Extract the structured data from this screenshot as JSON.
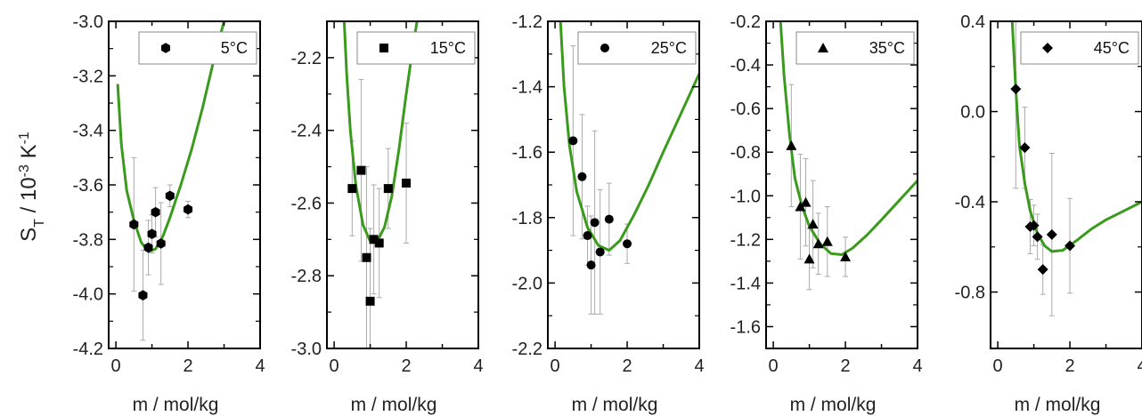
{
  "figure": {
    "ylabel_main": "S",
    "ylabel_sub": "T",
    "ylabel_rest": " / 10",
    "ylabel_exp1": "-3",
    "ylabel_unit": " K",
    "ylabel_exp2": "-1"
  },
  "colors": {
    "fit": "#3a9a1c",
    "marker": "#000000",
    "errorbar": "#aaaaaa"
  },
  "chart_data": [
    {
      "type": "scatter",
      "legend": "5°C",
      "legend_placement": "top-right",
      "marker": "hexagon",
      "xlabel": "m / mol/kg",
      "xlim": [
        -0.2,
        4
      ],
      "ylim": [
        -4.2,
        -3.0
      ],
      "xticks": [
        0,
        2,
        4
      ],
      "yticks": [
        -4.2,
        -4.0,
        -3.8,
        -3.6,
        -3.4,
        -3.2,
        -3.0
      ],
      "ytick_labels": [
        "-4.2",
        "-4.0",
        "-3.8",
        "-3.6",
        "-3.4",
        "-3.2",
        "-3.0"
      ],
      "points": [
        {
          "x": 0.5,
          "y": -3.745,
          "err": 0.245
        },
        {
          "x": 0.75,
          "y": -4.005,
          "err": 0.165
        },
        {
          "x": 0.9,
          "y": -3.83,
          "err": 0.1
        },
        {
          "x": 1.0,
          "y": -3.78,
          "err": 0.07
        },
        {
          "x": 1.1,
          "y": -3.7,
          "err": 0.09
        },
        {
          "x": 1.25,
          "y": -3.815,
          "err": 0.15
        },
        {
          "x": 1.5,
          "y": -3.64,
          "err": 0.04
        },
        {
          "x": 2.0,
          "y": -3.69,
          "err": 0.03
        }
      ],
      "fit": [
        [
          0.05,
          -3.23
        ],
        [
          0.15,
          -3.45
        ],
        [
          0.3,
          -3.62
        ],
        [
          0.5,
          -3.73
        ],
        [
          0.7,
          -3.81
        ],
        [
          0.9,
          -3.845
        ],
        [
          1.1,
          -3.835
        ],
        [
          1.3,
          -3.79
        ],
        [
          1.5,
          -3.72
        ],
        [
          1.8,
          -3.6
        ],
        [
          2.1,
          -3.47
        ],
        [
          2.4,
          -3.32
        ],
        [
          2.7,
          -3.15
        ],
        [
          3.0,
          -3.0
        ]
      ]
    },
    {
      "type": "scatter",
      "legend": "15°C",
      "legend_placement": "top-right",
      "marker": "square",
      "xlabel": "m / mol/kg",
      "xlim": [
        -0.2,
        4
      ],
      "ylim": [
        -3.0,
        -2.1
      ],
      "xticks": [
        0,
        2,
        4
      ],
      "yticks": [
        -3.0,
        -2.8,
        -2.6,
        -2.4,
        -2.2
      ],
      "ytick_labels": [
        "-3.0",
        "-2.8",
        "-2.6",
        "-2.4",
        "-2.2"
      ],
      "points": [
        {
          "x": 0.5,
          "y": -2.56,
          "err": 0.13
        },
        {
          "x": 0.75,
          "y": -2.51,
          "err": 0.25
        },
        {
          "x": 0.9,
          "y": -2.75,
          "err": 0.25
        },
        {
          "x": 1.0,
          "y": -2.87,
          "err": 0.2
        },
        {
          "x": 1.1,
          "y": -2.7,
          "err": 0.15
        },
        {
          "x": 1.25,
          "y": -2.71,
          "err": 0.15
        },
        {
          "x": 1.5,
          "y": -2.56,
          "err": 0.11
        },
        {
          "x": 2.0,
          "y": -2.545,
          "err": 0.165
        }
      ],
      "fit": [
        [
          0.28,
          -2.1
        ],
        [
          0.35,
          -2.25
        ],
        [
          0.45,
          -2.4
        ],
        [
          0.6,
          -2.55
        ],
        [
          0.8,
          -2.66
        ],
        [
          1.0,
          -2.705
        ],
        [
          1.2,
          -2.705
        ],
        [
          1.4,
          -2.665
        ],
        [
          1.6,
          -2.58
        ],
        [
          1.8,
          -2.45
        ],
        [
          2.0,
          -2.3
        ],
        [
          2.2,
          -2.16
        ],
        [
          2.3,
          -2.1
        ]
      ]
    },
    {
      "type": "scatter",
      "legend": "25°C",
      "legend_placement": "top-right",
      "marker": "circle",
      "xlabel": "m / mol/kg",
      "xlim": [
        -0.2,
        4
      ],
      "ylim": [
        -2.2,
        -1.2
      ],
      "xticks": [
        0,
        2,
        4
      ],
      "yticks": [
        -2.2,
        -2.0,
        -1.8,
        -1.6,
        -1.4,
        -1.2
      ],
      "ytick_labels": [
        "-2.2",
        "-2.0",
        "-1.8",
        "-1.6",
        "-1.4",
        "-1.2"
      ],
      "points": [
        {
          "x": 0.5,
          "y": -1.565,
          "err": 0.29
        },
        {
          "x": 0.75,
          "y": -1.675,
          "err": 0.19
        },
        {
          "x": 0.9,
          "y": -1.855,
          "err": 0.09
        },
        {
          "x": 1.0,
          "y": -1.945,
          "err": 0.15
        },
        {
          "x": 1.1,
          "y": -1.815,
          "err": 0.28
        },
        {
          "x": 1.25,
          "y": -1.905,
          "err": 0.19
        },
        {
          "x": 1.5,
          "y": -1.805,
          "err": 0.11
        },
        {
          "x": 2.0,
          "y": -1.88,
          "err": 0.06
        }
      ],
      "fit": [
        [
          0.15,
          -1.2
        ],
        [
          0.25,
          -1.4
        ],
        [
          0.4,
          -1.58
        ],
        [
          0.6,
          -1.72
        ],
        [
          0.9,
          -1.83
        ],
        [
          1.2,
          -1.885
        ],
        [
          1.5,
          -1.9
        ],
        [
          1.8,
          -1.87
        ],
        [
          2.2,
          -1.79
        ],
        [
          2.6,
          -1.7
        ],
        [
          3.0,
          -1.6
        ],
        [
          3.5,
          -1.48
        ],
        [
          4.0,
          -1.36
        ]
      ]
    },
    {
      "type": "scatter",
      "legend": "35°C",
      "legend_placement": "top-right",
      "marker": "triangle",
      "xlabel": "m / mol/kg",
      "xlim": [
        -0.2,
        4
      ],
      "ylim": [
        -1.7,
        -0.2
      ],
      "xticks": [
        0,
        2,
        4
      ],
      "yticks": [
        -1.6,
        -1.4,
        -1.2,
        -1.0,
        -0.8,
        -0.6,
        -0.4,
        -0.2
      ],
      "ytick_labels": [
        "-1.6",
        "-1.4",
        "-1.2",
        "-1.0",
        "-0.8",
        "-0.6",
        "-0.4",
        "-0.2"
      ],
      "points": [
        {
          "x": 0.5,
          "y": -0.77,
          "err": 0.28
        },
        {
          "x": 0.75,
          "y": -1.05,
          "err": 0.24
        },
        {
          "x": 0.9,
          "y": -1.03,
          "err": 0.2
        },
        {
          "x": 1.0,
          "y": -1.29,
          "err": 0.14
        },
        {
          "x": 1.1,
          "y": -1.13,
          "err": 0.2
        },
        {
          "x": 1.25,
          "y": -1.22,
          "err": 0.14
        },
        {
          "x": 1.5,
          "y": -1.21,
          "err": 0.16
        },
        {
          "x": 2.0,
          "y": -1.28,
          "err": 0.09
        }
      ],
      "fit": [
        [
          0.2,
          -0.2
        ],
        [
          0.3,
          -0.45
        ],
        [
          0.45,
          -0.72
        ],
        [
          0.6,
          -0.92
        ],
        [
          0.8,
          -1.05
        ],
        [
          1.0,
          -1.14
        ],
        [
          1.3,
          -1.22
        ],
        [
          1.6,
          -1.265
        ],
        [
          1.9,
          -1.27
        ],
        [
          2.2,
          -1.24
        ],
        [
          2.6,
          -1.18
        ],
        [
          3.0,
          -1.11
        ],
        [
          3.5,
          -1.02
        ],
        [
          4.0,
          -0.93
        ]
      ]
    },
    {
      "type": "scatter",
      "legend": "45°C",
      "legend_placement": "top-right",
      "marker": "diamond",
      "xlabel": "m / mol/kg",
      "xlim": [
        -0.2,
        4
      ],
      "ylim": [
        -1.05,
        0.4
      ],
      "xticks": [
        0,
        2,
        4
      ],
      "yticks": [
        -0.8,
        -0.4,
        0.0,
        0.4
      ],
      "ytick_labels": [
        "-0.8",
        "-0.4",
        "0.0",
        "0.4"
      ],
      "points": [
        {
          "x": 0.5,
          "y": 0.1,
          "err": 0.44
        },
        {
          "x": 0.75,
          "y": -0.16,
          "err": 0.18
        },
        {
          "x": 0.9,
          "y": -0.51,
          "err": 0.12
        },
        {
          "x": 1.0,
          "y": -0.505,
          "err": 0.09
        },
        {
          "x": 1.1,
          "y": -0.555,
          "err": 0.1
        },
        {
          "x": 1.25,
          "y": -0.7,
          "err": 0.11
        },
        {
          "x": 1.5,
          "y": -0.545,
          "err": 0.36
        },
        {
          "x": 2.0,
          "y": -0.595,
          "err": 0.21
        }
      ],
      "fit": [
        [
          0.4,
          0.4
        ],
        [
          0.5,
          0.1
        ],
        [
          0.6,
          -0.15
        ],
        [
          0.75,
          -0.32
        ],
        [
          0.9,
          -0.44
        ],
        [
          1.1,
          -0.54
        ],
        [
          1.3,
          -0.595
        ],
        [
          1.5,
          -0.62
        ],
        [
          1.8,
          -0.615
        ],
        [
          2.2,
          -0.57
        ],
        [
          2.6,
          -0.52
        ],
        [
          3.0,
          -0.48
        ],
        [
          3.5,
          -0.44
        ],
        [
          4.0,
          -0.4
        ]
      ]
    }
  ]
}
